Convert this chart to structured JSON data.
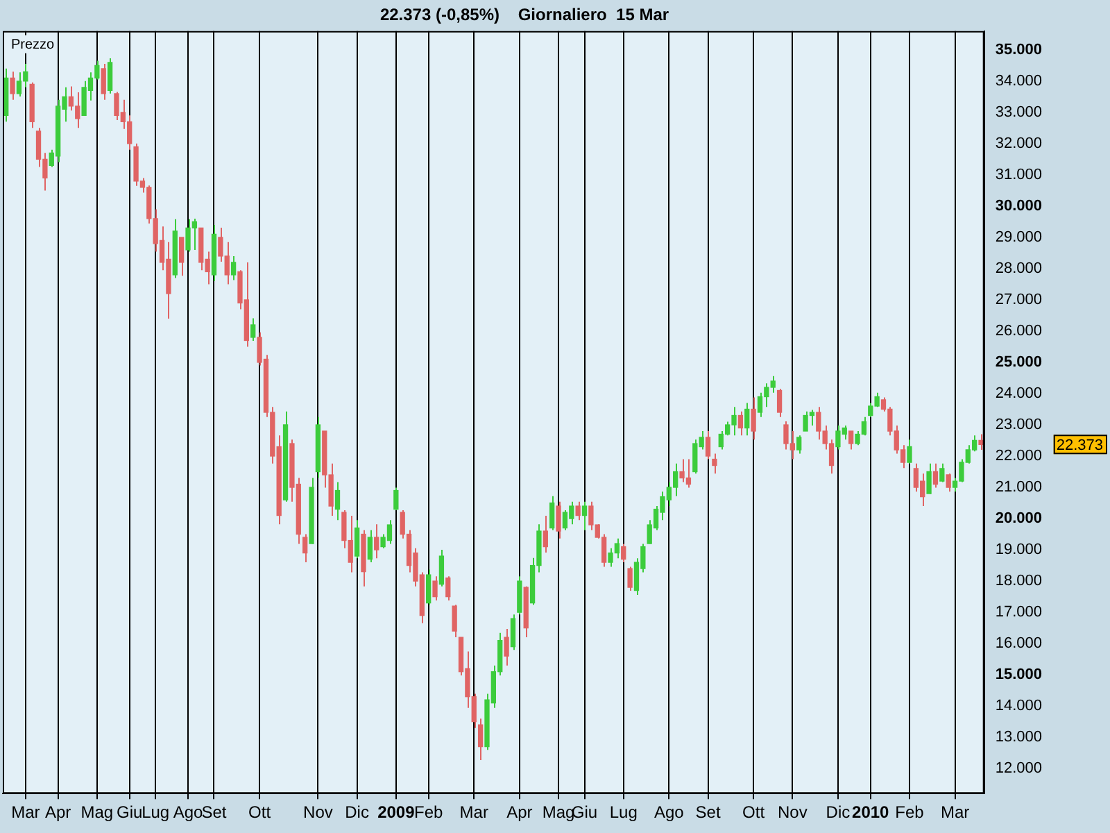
{
  "chart_data": {
    "type": "candlestick",
    "title": "22.373 (-0,85%)    Giornaliero  15 Mar",
    "categories": [
      null,
      null,
      null,
      "Mar",
      null,
      null,
      null,
      null,
      "Apr",
      null,
      null,
      null,
      null,
      null,
      "Mag",
      null,
      null,
      null,
      null,
      "Giu",
      null,
      null,
      null,
      "Lug",
      null,
      null,
      null,
      null,
      "Ago",
      null,
      null,
      null,
      "Set",
      null,
      null,
      null,
      null,
      null,
      null,
      "Ott",
      null,
      null,
      null,
      null,
      null,
      null,
      null,
      null,
      "Nov",
      null,
      null,
      null,
      null,
      null,
      "Dic",
      null,
      null,
      null,
      null,
      null,
      "2009",
      null,
      null,
      null,
      null,
      "Feb",
      null,
      null,
      null,
      null,
      null,
      null,
      "Mar",
      null,
      null,
      null,
      null,
      null,
      null,
      "Apr",
      null,
      null,
      null,
      null,
      null,
      "Mag",
      null,
      null,
      null,
      "Giu",
      null,
      null,
      null,
      null,
      null,
      "Lug",
      null,
      null,
      null,
      null,
      null,
      null,
      "Ago",
      null,
      null,
      null,
      null,
      null,
      "Set",
      null,
      null,
      null,
      null,
      null,
      null,
      "Ott",
      null,
      null,
      null,
      null,
      null,
      "Nov",
      null,
      null,
      null,
      null,
      null,
      null,
      "Dic",
      null,
      null,
      null,
      null,
      "2010",
      null,
      null,
      null,
      null,
      null,
      "Feb",
      null,
      null,
      null,
      null,
      null,
      null,
      "Mar",
      null,
      null,
      null,
      null
    ],
    "ohlc": [
      [
        32900,
        34400,
        32700,
        34100
      ],
      [
        34100,
        34300,
        33400,
        33600
      ],
      [
        33600,
        34280,
        33510,
        34000
      ],
      [
        34000,
        34550,
        33800,
        34300
      ],
      [
        33900,
        33960,
        32500,
        32700
      ],
      [
        32400,
        32500,
        31250,
        31500
      ],
      [
        31500,
        31700,
        30500,
        30900
      ],
      [
        31300,
        31800,
        31250,
        31700
      ],
      [
        31600,
        33400,
        31400,
        33200
      ],
      [
        33100,
        33800,
        32700,
        33500
      ],
      [
        33500,
        33830,
        33060,
        33200
      ],
      [
        33200,
        33640,
        32500,
        32800
      ],
      [
        32900,
        34000,
        32900,
        33800
      ],
      [
        33700,
        34280,
        33380,
        34100
      ],
      [
        34100,
        34650,
        34050,
        34500
      ],
      [
        34400,
        34550,
        33400,
        33600
      ],
      [
        33700,
        34730,
        33600,
        34600
      ],
      [
        33600,
        33650,
        32750,
        32900
      ],
      [
        33000,
        33400,
        32470,
        32700
      ],
      [
        32700,
        32900,
        31800,
        32000
      ],
      [
        31900,
        32000,
        30650,
        30800
      ],
      [
        30800,
        30900,
        30430,
        30600
      ],
      [
        30600,
        30660,
        29440,
        29600
      ],
      [
        29600,
        29900,
        28540,
        28800
      ],
      [
        28900,
        29350,
        27950,
        28200
      ],
      [
        28300,
        28850,
        26400,
        27200
      ],
      [
        27800,
        29580,
        27700,
        29200
      ],
      [
        29000,
        29000,
        27770,
        28200
      ],
      [
        28600,
        29580,
        28540,
        29300
      ],
      [
        29300,
        29600,
        28600,
        29500
      ],
      [
        29300,
        29310,
        27950,
        28200
      ],
      [
        28300,
        28540,
        27500,
        27900
      ],
      [
        27800,
        29400,
        27600,
        29100
      ],
      [
        29000,
        29310,
        28220,
        28400
      ],
      [
        28400,
        28850,
        27500,
        27800
      ],
      [
        27800,
        28400,
        27630,
        28200
      ],
      [
        27900,
        27950,
        26700,
        26900
      ],
      [
        27000,
        28200,
        25500,
        25700
      ],
      [
        25800,
        26410,
        25690,
        26200
      ],
      [
        25800,
        25960,
        24900,
        25000
      ],
      [
        25100,
        25240,
        23250,
        23400
      ],
      [
        23400,
        23570,
        21760,
        22000
      ],
      [
        22300,
        22660,
        19820,
        20100
      ],
      [
        20600,
        23430,
        20540,
        23000
      ],
      [
        22400,
        22530,
        20540,
        21000
      ],
      [
        21100,
        21300,
        19190,
        19500
      ],
      [
        19400,
        19500,
        18600,
        18900
      ],
      [
        19200,
        21300,
        19190,
        21000
      ],
      [
        21500,
        23250,
        21300,
        23000
      ],
      [
        22800,
        22800,
        20990,
        21400
      ],
      [
        21400,
        21760,
        20090,
        20400
      ],
      [
        20300,
        21170,
        19950,
        20900
      ],
      [
        20200,
        20270,
        19050,
        19300
      ],
      [
        19300,
        20090,
        18280,
        18600
      ],
      [
        18800,
        19950,
        18730,
        19700
      ],
      [
        19500,
        19630,
        17830,
        18300
      ],
      [
        18700,
        19630,
        18600,
        19400
      ],
      [
        19400,
        19820,
        18730,
        19000
      ],
      [
        19100,
        19500,
        19050,
        19400
      ],
      [
        19300,
        19950,
        19190,
        19800
      ],
      [
        20300,
        20990,
        20270,
        20900
      ],
      [
        20200,
        20270,
        19360,
        19500
      ],
      [
        19500,
        19630,
        18280,
        18500
      ],
      [
        18900,
        19050,
        17830,
        18000
      ],
      [
        18200,
        18280,
        16650,
        16900
      ],
      [
        17300,
        18370,
        17240,
        18200
      ],
      [
        18000,
        18150,
        17380,
        17500
      ],
      [
        17900,
        19000,
        17830,
        18800
      ],
      [
        18100,
        18150,
        17380,
        17500
      ],
      [
        17200,
        17240,
        16200,
        16400
      ],
      [
        16200,
        16200,
        14980,
        15100
      ],
      [
        15200,
        15750,
        13940,
        14300
      ],
      [
        14300,
        14390,
        13300,
        13500
      ],
      [
        13400,
        13600,
        12270,
        12700
      ],
      [
        12700,
        14390,
        12600,
        14200
      ],
      [
        14100,
        15300,
        13940,
        15100
      ],
      [
        15100,
        16340,
        14980,
        16100
      ],
      [
        16200,
        16470,
        15300,
        15600
      ],
      [
        15900,
        16930,
        15800,
        16800
      ],
      [
        17000,
        18150,
        16930,
        18000
      ],
      [
        17800,
        17830,
        16200,
        16500
      ],
      [
        17300,
        18740,
        17240,
        18500
      ],
      [
        18500,
        19820,
        18280,
        19600
      ],
      [
        19600,
        20090,
        18910,
        19100
      ],
      [
        19700,
        20720,
        19630,
        20500
      ],
      [
        20400,
        20540,
        19360,
        19600
      ],
      [
        19700,
        20270,
        19630,
        20200
      ],
      [
        20000,
        20540,
        19820,
        20400
      ],
      [
        20400,
        20540,
        19950,
        20100
      ],
      [
        20100,
        20540,
        19630,
        20400
      ],
      [
        20400,
        20540,
        19630,
        19800
      ],
      [
        19800,
        19820,
        19360,
        19400
      ],
      [
        19400,
        19500,
        18460,
        18600
      ],
      [
        18600,
        19050,
        18460,
        18900
      ],
      [
        18900,
        19360,
        18730,
        19200
      ],
      [
        19100,
        19190,
        18600,
        18700
      ],
      [
        18400,
        18460,
        17690,
        17800
      ],
      [
        17700,
        18730,
        17560,
        18600
      ],
      [
        18400,
        19190,
        18280,
        19100
      ],
      [
        19200,
        19950,
        19190,
        19800
      ],
      [
        19700,
        20400,
        19630,
        20300
      ],
      [
        20200,
        20860,
        19950,
        20700
      ],
      [
        20600,
        21170,
        20400,
        21000
      ],
      [
        21000,
        21760,
        20720,
        21500
      ],
      [
        21500,
        21900,
        21170,
        21300
      ],
      [
        21300,
        21900,
        20990,
        21100
      ],
      [
        21500,
        22530,
        21440,
        22400
      ],
      [
        22300,
        22800,
        22210,
        22600
      ],
      [
        22600,
        22800,
        21900,
        22000
      ],
      [
        21900,
        22080,
        21440,
        21700
      ],
      [
        22300,
        22800,
        22210,
        22700
      ],
      [
        22700,
        23100,
        22660,
        23000
      ],
      [
        23000,
        23570,
        22660,
        23300
      ],
      [
        23300,
        23430,
        22660,
        22900
      ],
      [
        22900,
        23700,
        22660,
        23500
      ],
      [
        23500,
        23880,
        22530,
        22800
      ],
      [
        23400,
        24030,
        23250,
        23900
      ],
      [
        23900,
        24330,
        23570,
        24200
      ],
      [
        24200,
        24560,
        24030,
        24400
      ],
      [
        24100,
        24150,
        23250,
        23400
      ],
      [
        23000,
        23110,
        22210,
        22400
      ],
      [
        22400,
        22800,
        21900,
        22200
      ],
      [
        22200,
        22660,
        22080,
        22600
      ],
      [
        22800,
        23430,
        22800,
        23300
      ],
      [
        23300,
        23480,
        22980,
        23400
      ],
      [
        23400,
        23570,
        22530,
        22800
      ],
      [
        22800,
        22980,
        22210,
        22400
      ],
      [
        22400,
        22530,
        21440,
        21700
      ],
      [
        22300,
        22980,
        22210,
        22800
      ],
      [
        22700,
        22980,
        22530,
        22900
      ],
      [
        22800,
        22800,
        22210,
        22400
      ],
      [
        22400,
        22800,
        22350,
        22700
      ],
      [
        22700,
        23250,
        22660,
        23100
      ],
      [
        23300,
        23700,
        23250,
        23600
      ],
      [
        23600,
        24030,
        23570,
        23900
      ],
      [
        23800,
        23880,
        23430,
        23500
      ],
      [
        23500,
        23570,
        22660,
        22800
      ],
      [
        22800,
        22980,
        22080,
        22200
      ],
      [
        22200,
        22350,
        21620,
        21800
      ],
      [
        21800,
        22530,
        21760,
        22300
      ],
      [
        21600,
        21760,
        20860,
        21000
      ],
      [
        21200,
        21440,
        20400,
        20700
      ],
      [
        20800,
        21760,
        20790,
        21500
      ],
      [
        21500,
        21760,
        20990,
        21100
      ],
      [
        21200,
        21760,
        21170,
        21600
      ],
      [
        21400,
        21440,
        20860,
        21000
      ],
      [
        21000,
        21300,
        20860,
        21200
      ],
      [
        21200,
        21900,
        21170,
        21800
      ],
      [
        21800,
        22350,
        21760,
        22200
      ],
      [
        22200,
        22660,
        22150,
        22500
      ],
      [
        22500,
        22700,
        22200,
        22373
      ]
    ],
    "colors": [
      "#3ccc3c",
      "#e06464",
      "#3ccc3c",
      "#3ccc3c",
      "#e06464",
      "#e06464",
      "#e06464",
      "#3ccc3c",
      "#3ccc3c",
      "#3ccc3c",
      "#e06464",
      "#e06464",
      "#3ccc3c",
      "#3ccc3c",
      "#3ccc3c",
      "#e06464",
      "#3ccc3c",
      "#e06464",
      "#e06464",
      "#e06464",
      "#e06464",
      "#e06464",
      "#e06464",
      "#e06464",
      "#e06464",
      "#e06464",
      "#3ccc3c",
      "#e06464",
      "#3ccc3c",
      "#3ccc3c",
      "#e06464",
      "#e06464",
      "#3ccc3c",
      "#e06464",
      "#e06464",
      "#3ccc3c",
      "#e06464",
      "#e06464",
      "#3ccc3c",
      "#e06464",
      "#e06464",
      "#e06464",
      "#e06464",
      "#3ccc3c",
      "#e06464",
      "#e06464",
      "#e06464",
      "#3ccc3c",
      "#3ccc3c",
      "#e06464",
      "#e06464",
      "#3ccc3c",
      "#e06464",
      "#e06464",
      "#3ccc3c",
      "#e06464",
      "#3ccc3c",
      "#e06464",
      "#3ccc3c",
      "#3ccc3c",
      "#3ccc3c",
      "#e06464",
      "#e06464",
      "#e06464",
      "#e06464",
      "#3ccc3c",
      "#e06464",
      "#3ccc3c",
      "#e06464",
      "#e06464",
      "#e06464",
      "#e06464",
      "#e06464",
      "#e06464",
      "#3ccc3c",
      "#3ccc3c",
      "#3ccc3c",
      "#e06464",
      "#3ccc3c",
      "#3ccc3c",
      "#e06464",
      "#3ccc3c",
      "#3ccc3c",
      "#e06464",
      "#3ccc3c",
      "#e06464",
      "#3ccc3c",
      "#3ccc3c",
      "#e06464",
      "#3ccc3c",
      "#e06464",
      "#e06464",
      "#e06464",
      "#3ccc3c",
      "#3ccc3c",
      "#e06464",
      "#e06464",
      "#3ccc3c",
      "#3ccc3c",
      "#3ccc3c",
      "#3ccc3c",
      "#3ccc3c",
      "#3ccc3c",
      "#3ccc3c",
      "#e06464",
      "#e06464",
      "#3ccc3c",
      "#3ccc3c",
      "#e06464",
      "#e06464",
      "#3ccc3c",
      "#3ccc3c",
      "#3ccc3c",
      "#e06464",
      "#3ccc3c",
      "#e06464",
      "#3ccc3c",
      "#3ccc3c",
      "#3ccc3c",
      "#e06464",
      "#e06464",
      "#e06464",
      "#3ccc3c",
      "#3ccc3c",
      "#3ccc3c",
      "#e06464",
      "#e06464",
      "#e06464",
      "#3ccc3c",
      "#3ccc3c",
      "#e06464",
      "#3ccc3c",
      "#3ccc3c",
      "#3ccc3c",
      "#3ccc3c",
      "#e06464",
      "#e06464",
      "#e06464",
      "#e06464",
      "#3ccc3c",
      "#e06464",
      "#e06464",
      "#3ccc3c",
      "#e06464",
      "#3ccc3c",
      "#e06464",
      "#3ccc3c",
      "#3ccc3c",
      "#3ccc3c",
      "#3ccc3c",
      "#e06464"
    ],
    "ylim": [
      11200,
      35600
    ],
    "yticks": [
      {
        "value": 12000,
        "label": "12.000"
      },
      {
        "value": 13000,
        "label": "13.000"
      },
      {
        "value": 14000,
        "label": "14.000"
      },
      {
        "value": 15000,
        "label": "15.000"
      },
      {
        "value": 16000,
        "label": "16.000"
      },
      {
        "value": 17000,
        "label": "17.000"
      },
      {
        "value": 18000,
        "label": "18.000"
      },
      {
        "value": 19000,
        "label": "19.000"
      },
      {
        "value": 20000,
        "label": "20.000"
      },
      {
        "value": 21000,
        "label": "21.000"
      },
      {
        "value": 22000,
        "label": "22.000"
      },
      {
        "value": 23000,
        "label": "23.000"
      },
      {
        "value": 24000,
        "label": "24.000"
      },
      {
        "value": 25000,
        "label": "25.000"
      },
      {
        "value": 26000,
        "label": "26.000"
      },
      {
        "value": 27000,
        "label": "27.000"
      },
      {
        "value": 28000,
        "label": "28.000"
      },
      {
        "value": 29000,
        "label": "29.000"
      },
      {
        "value": 30000,
        "label": "30.000"
      },
      {
        "value": 31000,
        "label": "31.000"
      },
      {
        "value": 32000,
        "label": "32.000"
      },
      {
        "value": 33000,
        "label": "33.000"
      },
      {
        "value": 34000,
        "label": "34.000"
      },
      {
        "value": 35000,
        "label": "35.000"
      }
    ],
    "grid": "x",
    "legend": false,
    "annotations": [
      "Prezzo",
      "22.373"
    ]
  }
}
